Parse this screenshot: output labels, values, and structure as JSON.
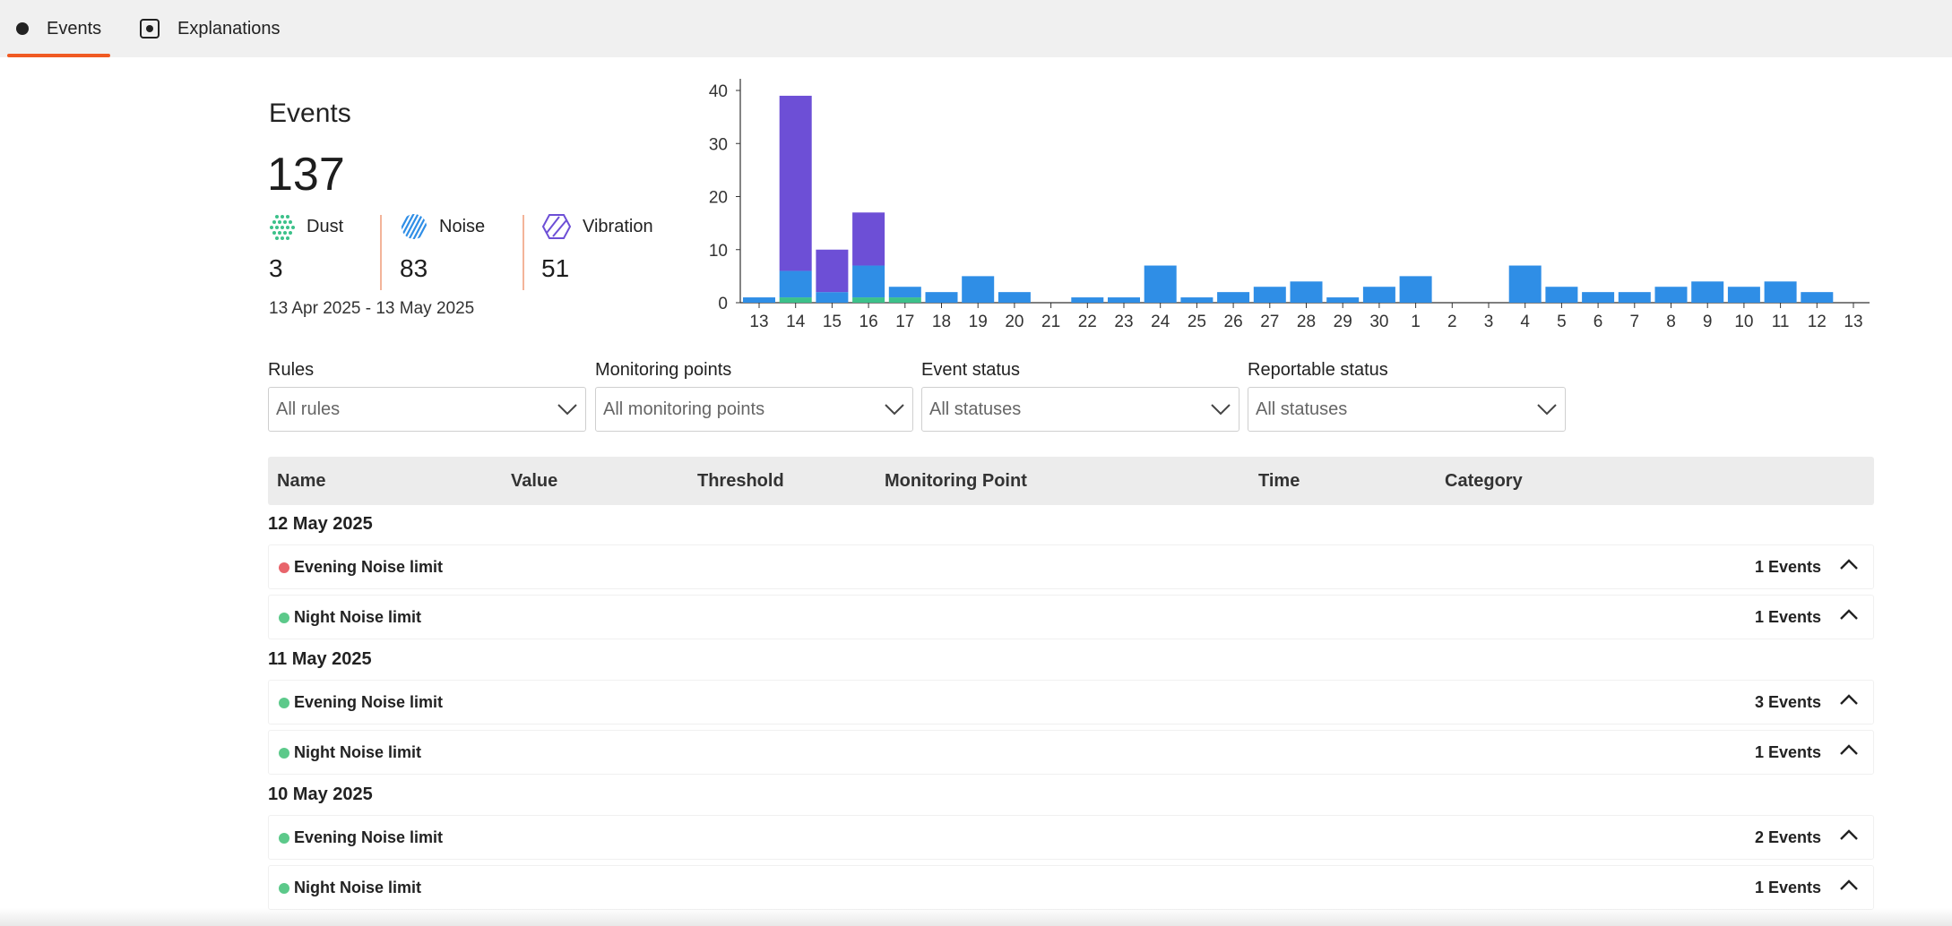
{
  "tabs": [
    {
      "label": "Events",
      "active": true,
      "icon": "dot-icon"
    },
    {
      "label": "Explanations",
      "active": false,
      "icon": "square-dot-icon"
    }
  ],
  "summary": {
    "title": "Events",
    "total": "137",
    "stats": [
      {
        "label": "Dust",
        "value": "3",
        "icon": "dust-icon",
        "color": "#3cc18a"
      },
      {
        "label": "Noise",
        "value": "83",
        "icon": "noise-icon",
        "color": "#2f8ee6"
      },
      {
        "label": "Vibration",
        "value": "51",
        "icon": "vibration-icon",
        "color": "#6d4fd6"
      }
    ],
    "date_range": "13 Apr 2025 - 13 May 2025"
  },
  "chart_data": {
    "type": "bar",
    "stacked": true,
    "categories": [
      "13",
      "14",
      "15",
      "16",
      "17",
      "18",
      "19",
      "20",
      "21",
      "22",
      "23",
      "24",
      "25",
      "26",
      "27",
      "28",
      "29",
      "30",
      "1",
      "2",
      "3",
      "4",
      "5",
      "6",
      "7",
      "8",
      "9",
      "10",
      "11",
      "12",
      "13"
    ],
    "series": [
      {
        "color": "#3cc18a",
        "values": [
          0,
          1,
          0,
          1,
          1,
          0,
          0,
          0,
          0,
          0,
          0,
          0,
          0,
          0,
          0,
          0,
          0,
          0,
          0,
          0,
          0,
          0,
          0,
          0,
          0,
          0,
          0,
          0,
          0,
          0,
          0
        ]
      },
      {
        "color": "#2f8ee6",
        "values": [
          1,
          5,
          2,
          6,
          2,
          2,
          5,
          2,
          0,
          1,
          1,
          7,
          1,
          2,
          3,
          4,
          1,
          3,
          5,
          0,
          0,
          7,
          3,
          2,
          2,
          3,
          4,
          3,
          4,
          2,
          0
        ]
      },
      {
        "color": "#6d4fd6",
        "values": [
          0,
          33,
          8,
          10,
          0,
          0,
          0,
          0,
          0,
          0,
          0,
          0,
          0,
          0,
          0,
          0,
          0,
          0,
          0,
          0,
          0,
          0,
          0,
          0,
          0,
          0,
          0,
          0,
          0,
          0,
          0
        ]
      }
    ],
    "yticks": [
      0,
      10,
      20,
      30,
      40
    ],
    "ylim": [
      0,
      40
    ],
    "grid": false
  },
  "filters": [
    {
      "label": "Rules",
      "value": "All rules"
    },
    {
      "label": "Monitoring points",
      "value": "All monitoring points"
    },
    {
      "label": "Event status",
      "value": "All statuses"
    },
    {
      "label": "Reportable status",
      "value": "All statuses"
    }
  ],
  "table": {
    "columns": [
      "Name",
      "Value",
      "Threshold",
      "Monitoring Point",
      "Time",
      "Category"
    ],
    "groups": [
      {
        "date": "12 May 2025",
        "rows": [
          {
            "name": "Evening Noise limit",
            "count": "1 Events",
            "status_color": "#e8646b"
          },
          {
            "name": "Night Noise limit",
            "count": "1 Events",
            "status_color": "#5cc98a"
          }
        ]
      },
      {
        "date": "11 May 2025",
        "rows": [
          {
            "name": "Evening Noise limit",
            "count": "3 Events",
            "status_color": "#5cc98a"
          },
          {
            "name": "Night Noise limit",
            "count": "1 Events",
            "status_color": "#5cc98a"
          }
        ]
      },
      {
        "date": "10 May 2025",
        "rows": [
          {
            "name": "Evening Noise limit",
            "count": "2 Events",
            "status_color": "#5cc98a"
          },
          {
            "name": "Night Noise limit",
            "count": "1 Events",
            "status_color": "#5cc98a"
          }
        ]
      }
    ]
  },
  "accent_color": "#f05a22"
}
